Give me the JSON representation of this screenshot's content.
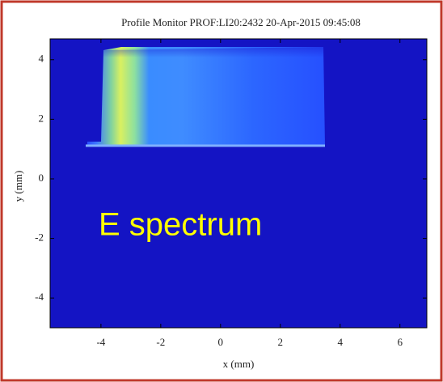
{
  "chart_data": {
    "type": "image",
    "title": "Profile Monitor PROF:LI20:2432 20-Apr-2015 09:45:08",
    "x_label": "x (mm)",
    "y_label": "y (mm)",
    "annotation": "E spectrum",
    "xlim": [
      -5.7,
      6.9
    ],
    "ylim": [
      -5,
      4.7
    ],
    "xticks": [
      -4,
      -2,
      0,
      2,
      4,
      6
    ],
    "yticks": [
      -4,
      -2,
      0,
      2,
      4
    ]
  }
}
